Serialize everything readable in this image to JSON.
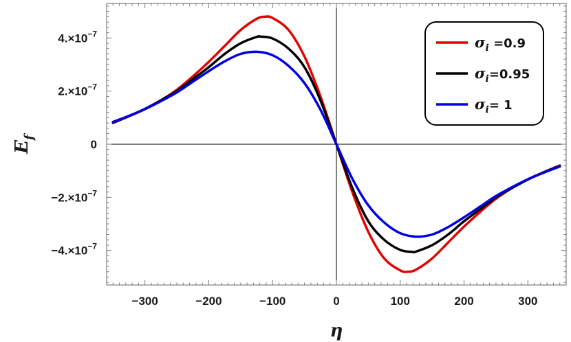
{
  "chart_data": {
    "type": "line",
    "xlabel": "η",
    "ylabel_base": "E",
    "ylabel_sub": "f",
    "xlim": [
      -360,
      360
    ],
    "ylim": [
      -5.3e-07,
      5.3e-07
    ],
    "x_ticks": [
      {
        "value": -300,
        "label": "−300"
      },
      {
        "value": -200,
        "label": "−200"
      },
      {
        "value": -100,
        "label": "−100"
      },
      {
        "value": 0,
        "label": "0"
      },
      {
        "value": 100,
        "label": "100"
      },
      {
        "value": 200,
        "label": "200"
      },
      {
        "value": 300,
        "label": "300"
      }
    ],
    "y_ticks": [
      {
        "value": 4e-07,
        "mant": "4.×10",
        "exp": "−7"
      },
      {
        "value": 2e-07,
        "mant": "2.×10",
        "exp": "−7"
      },
      {
        "value": 0,
        "mant": "0",
        "exp": ""
      },
      {
        "value": -2e-07,
        "mant": "−2.×10",
        "exp": "−7"
      },
      {
        "value": -4e-07,
        "mant": "−4.×10",
        "exp": "−7"
      }
    ],
    "grid": false,
    "legend_position": "top-right",
    "series": [
      {
        "name": "σi =0.9",
        "legend_sub": "i",
        "legend_rest": " =0.9",
        "color": "#e60000",
        "x": [
          -350,
          -325,
          -300,
          -275,
          -250,
          -225,
          -200,
          -175,
          -150,
          -125,
          -112,
          -100,
          -75,
          -50,
          -25,
          0,
          25,
          50,
          75,
          100,
          112,
          125,
          150,
          175,
          200,
          225,
          250,
          275,
          300,
          325,
          350
        ],
        "y": [
          8e-08,
          1.05e-07,
          1.32e-07,
          1.65e-07,
          2.05e-07,
          2.55e-07,
          3.1e-07,
          3.7e-07,
          4.3e-07,
          4.72e-07,
          4.8e-07,
          4.75e-07,
          4.3e-07,
          3.3e-07,
          1.8e-07,
          0,
          -1.8e-07,
          -3.3e-07,
          -4.3e-07,
          -4.75e-07,
          -4.8e-07,
          -4.72e-07,
          -4.3e-07,
          -3.7e-07,
          -3.1e-07,
          -2.55e-07,
          -2.05e-07,
          -1.65e-07,
          -1.32e-07,
          -1.05e-07,
          -8e-08
        ]
      },
      {
        "name": "σi=0.95",
        "legend_sub": "i",
        "legend_rest": "=0.95",
        "color": "#000000",
        "x": [
          -350,
          -325,
          -300,
          -275,
          -250,
          -225,
          -200,
          -175,
          -150,
          -125,
          -118,
          -100,
          -75,
          -50,
          -25,
          0,
          25,
          50,
          75,
          100,
          118,
          125,
          150,
          175,
          200,
          225,
          250,
          275,
          300,
          325,
          350
        ],
        "y": [
          8.2e-08,
          1.06e-07,
          1.33e-07,
          1.65e-07,
          2e-07,
          2.45e-07,
          2.9e-07,
          3.4e-07,
          3.8e-07,
          4.04e-07,
          4.05e-07,
          3.98e-07,
          3.6e-07,
          2.9e-07,
          1.65e-07,
          0,
          -1.65e-07,
          -2.9e-07,
          -3.6e-07,
          -3.98e-07,
          -4.05e-07,
          -4.04e-07,
          -3.8e-07,
          -3.4e-07,
          -2.9e-07,
          -2.45e-07,
          -2e-07,
          -1.65e-07,
          -1.33e-07,
          -1.06e-07,
          -8.2e-08
        ]
      },
      {
        "name": "σi= 1",
        "legend_sub": "i",
        "legend_rest": "= 1",
        "color": "#0000e6",
        "x": [
          -350,
          -325,
          -300,
          -275,
          -250,
          -225,
          -200,
          -175,
          -150,
          -125,
          -100,
          -75,
          -50,
          -25,
          0,
          25,
          50,
          75,
          100,
          125,
          150,
          175,
          200,
          225,
          250,
          275,
          300,
          325,
          350
        ],
        "y": [
          8.4e-08,
          1.07e-07,
          1.32e-07,
          1.62e-07,
          1.95e-07,
          2.35e-07,
          2.75e-07,
          3.12e-07,
          3.4e-07,
          3.48e-07,
          3.35e-07,
          2.95e-07,
          2.3e-07,
          1.3e-07,
          0,
          -1.3e-07,
          -2.3e-07,
          -2.95e-07,
          -3.35e-07,
          -3.48e-07,
          -3.4e-07,
          -3.12e-07,
          -2.75e-07,
          -2.35e-07,
          -1.95e-07,
          -1.62e-07,
          -1.32e-07,
          -1.07e-07,
          -8.4e-08
        ]
      }
    ]
  }
}
